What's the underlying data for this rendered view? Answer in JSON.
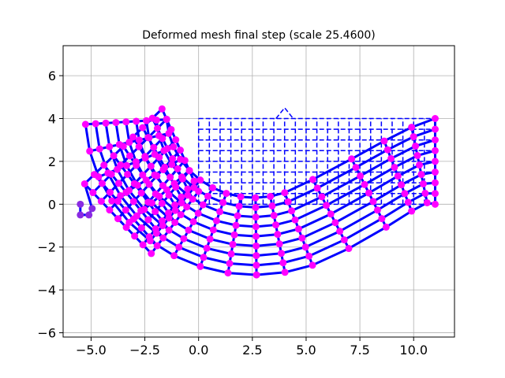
{
  "chart_data": {
    "type": "scatter",
    "title": "Deformed mesh final step (scale 25.4600)",
    "xlabel": "",
    "ylabel": "",
    "xlim": [
      -6.3,
      11.9
    ],
    "ylim": [
      -6.2,
      7.4
    ],
    "x_ticks": [
      -5,
      -2.5,
      0,
      2.5,
      5,
      7.5,
      10
    ],
    "x_tick_labels": [
      "−5.0",
      "−2.5",
      "0.0",
      "2.5",
      "5.0",
      "7.5",
      "10.0"
    ],
    "y_ticks": [
      -6,
      -4,
      -2,
      0,
      2,
      4,
      6
    ],
    "y_tick_labels": [
      "−6",
      "−4",
      "−2",
      "0",
      "2",
      "4",
      "6"
    ],
    "grid": true,
    "undeformed_mesh": {
      "x_range": [
        0,
        11
      ],
      "y_range": [
        0,
        4
      ],
      "columns": 22,
      "rows": 8,
      "color": "#0000ff",
      "style": "dashed"
    },
    "deformed_mesh": {
      "color": "#0000ff",
      "node_color": "#ff00ff",
      "left_support_color": "#8a2be2",
      "scale": 25.46,
      "left_corner_nodes": [
        [
          -5.5,
          0.0
        ],
        [
          -5.5,
          -0.5
        ],
        [
          -5.1,
          -0.5
        ],
        [
          -4.95,
          -0.2
        ]
      ],
      "top_left_peak": [
        -1.7,
        4.45
      ],
      "left_tip": [
        -5.3,
        0.95
      ],
      "bottom_min": [
        2.3,
        -3.3
      ],
      "right_top": [
        11.0,
        4.0
      ],
      "right_bottom": [
        11.0,
        0.0
      ]
    }
  }
}
